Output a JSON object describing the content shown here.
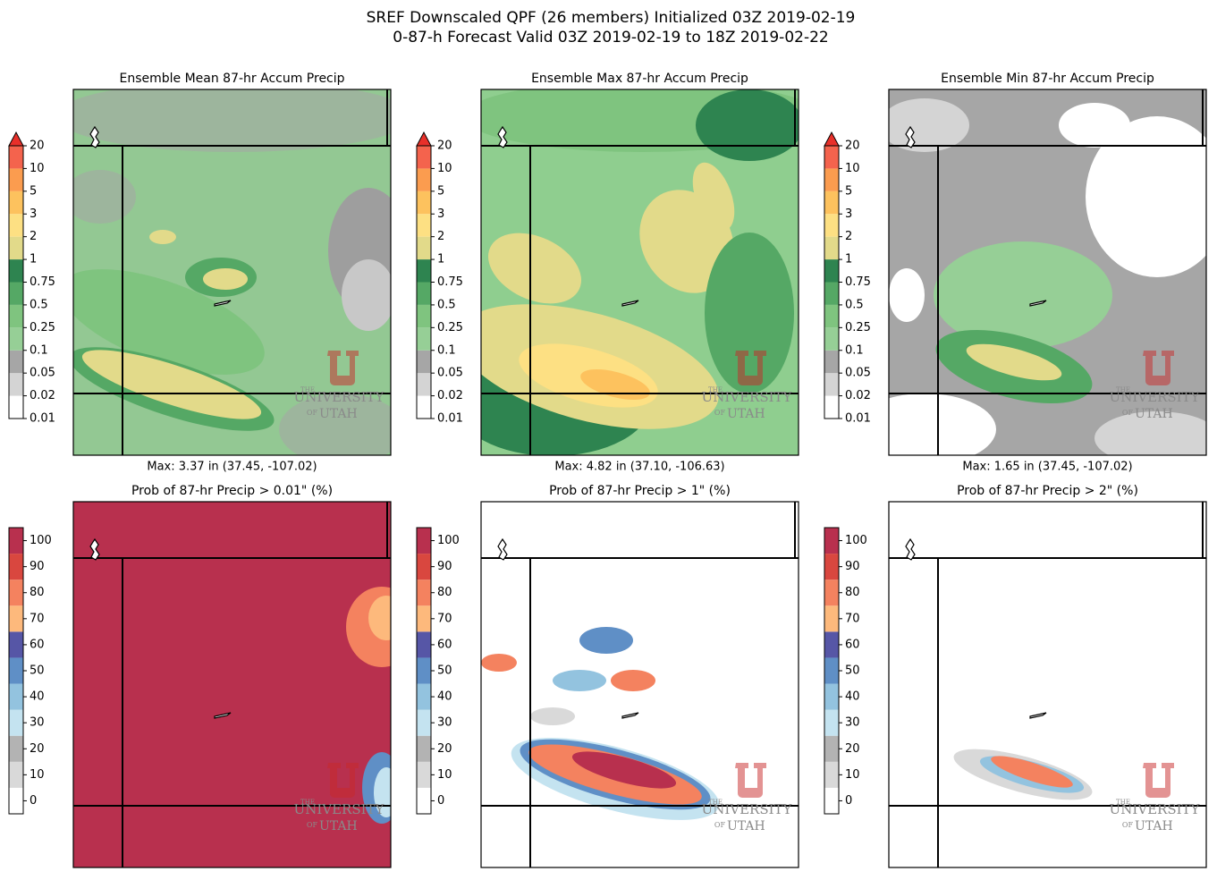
{
  "title": [
    "SREF Downscaled QPF (26 members) Initialized 03Z 2019-02-19",
    "0-87-h Forecast Valid 03Z 2019-02-19 to 18Z 2019-02-22"
  ],
  "watermark": [
    "THE",
    "UNIVERSITY",
    "OF",
    "UTAH"
  ],
  "rows": [
    {
      "colorbar": {
        "ticks": [
          0.01,
          0.02,
          0.05,
          0.1,
          0.25,
          0.5,
          0.75,
          1,
          2,
          3,
          5,
          10,
          20
        ],
        "colors": [
          "#ffffff",
          "#d4d4d4",
          "#a6a6a6",
          "#96cf96",
          "#7fc47f",
          "#55a865",
          "#2e8450",
          "#e2da8a",
          "#fde083",
          "#fdc25e",
          "#fb9c4f",
          "#f4634d"
        ],
        "extend_color": "#e8302a"
      },
      "panels": [
        {
          "title": "Ensemble Mean 87-hr Accum Precip",
          "max": "Max: 3.37 in (37.45, -107.02)"
        },
        {
          "title": "Ensemble Max 87-hr Accum Precip",
          "max": "Max: 4.82 in (37.10, -106.63)"
        },
        {
          "title": "Ensemble Min 87-hr Accum Precip",
          "max": "Max: 1.65 in (37.45, -107.02)"
        }
      ]
    },
    {
      "colorbar": {
        "ticks": [
          0,
          10,
          20,
          30,
          40,
          50,
          60,
          70,
          80,
          90,
          100
        ],
        "colors": [
          "#ffffff",
          "#d9d9d9",
          "#b3b3b3",
          "#c4e3f0",
          "#93c3df",
          "#5f8fc6",
          "#5656a6",
          "#fdb97c",
          "#f4825f",
          "#d9473f",
          "#b8304e"
        ]
      },
      "panels": [
        {
          "title": "Prob of 87-hr Precip > 0.01\" (%)"
        },
        {
          "title": "Prob of 87-hr Precip > 1\" (%)"
        },
        {
          "title": "Prob of 87-hr Precip > 2\" (%)"
        }
      ]
    }
  ]
}
